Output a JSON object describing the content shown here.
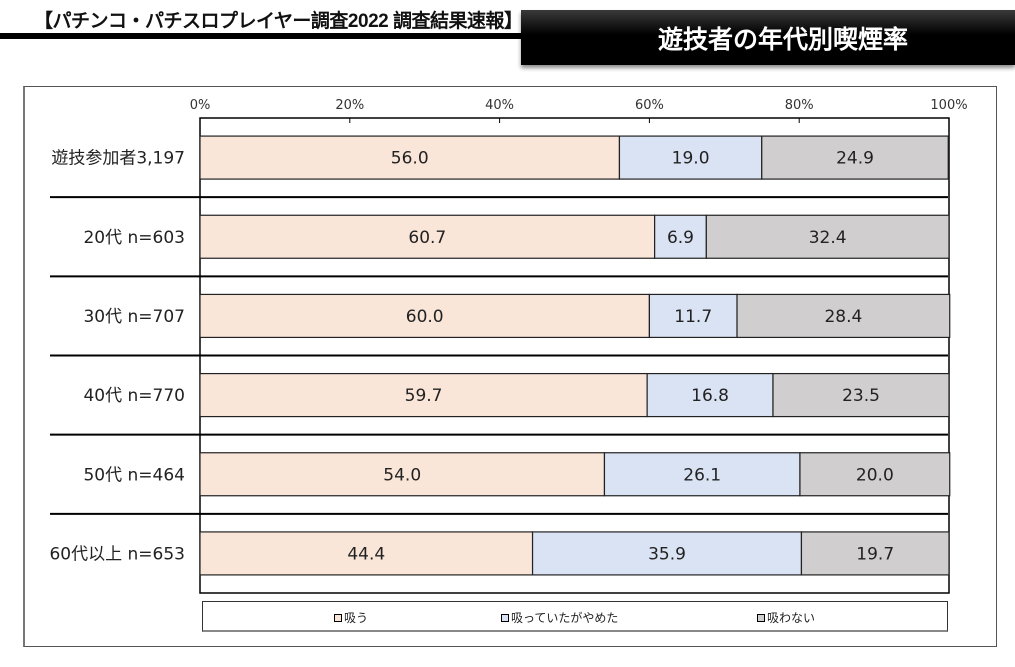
{
  "header": {
    "title": "【パチンコ・パチスロプレイヤー調査2022 調査結果速報】",
    "banner_title": "遊技者の年代別喫煙率"
  },
  "chart_data": {
    "type": "bar",
    "orientation": "horizontal",
    "stacked": "percent",
    "title": "遊技者の年代別喫煙率",
    "xlabel": "",
    "ylabel": "",
    "xlim": [
      0,
      100
    ],
    "x_ticks": [
      "0%",
      "20%",
      "40%",
      "60%",
      "80%",
      "100%"
    ],
    "x_tick_values": [
      0,
      20,
      40,
      60,
      80,
      100
    ],
    "categories": [
      "遊技参加者3,197",
      "20代 n=603",
      "30代 n=707",
      "40代 n=770",
      "50代 n=464",
      "60代以上 n=653"
    ],
    "series": [
      {
        "name": "吸う",
        "color": "#fae5d9",
        "values": [
          56.0,
          60.7,
          60.0,
          59.7,
          54.0,
          44.4
        ],
        "labels": [
          "56.0",
          "60.7",
          "60.0",
          "59.7",
          "54.0",
          "44.4"
        ]
      },
      {
        "name": "吸っていたがやめた",
        "color": "#dae3f3",
        "values": [
          19.0,
          6.9,
          11.7,
          16.8,
          26.1,
          35.9
        ],
        "labels": [
          "19.0",
          "6.9",
          "11.7",
          "16.8",
          "26.1",
          "35.9"
        ]
      },
      {
        "name": "吸わない",
        "color": "#d0cece",
        "values": [
          24.9,
          32.4,
          28.4,
          23.5,
          20.0,
          19.7
        ],
        "labels": [
          "24.9",
          "32.4",
          "28.4",
          "23.5",
          "20.0",
          "19.7"
        ]
      }
    ],
    "legend": {
      "position": "bottom",
      "items": [
        "吸う",
        "吸っていたがやめた",
        "吸わない"
      ]
    },
    "grid": false
  }
}
